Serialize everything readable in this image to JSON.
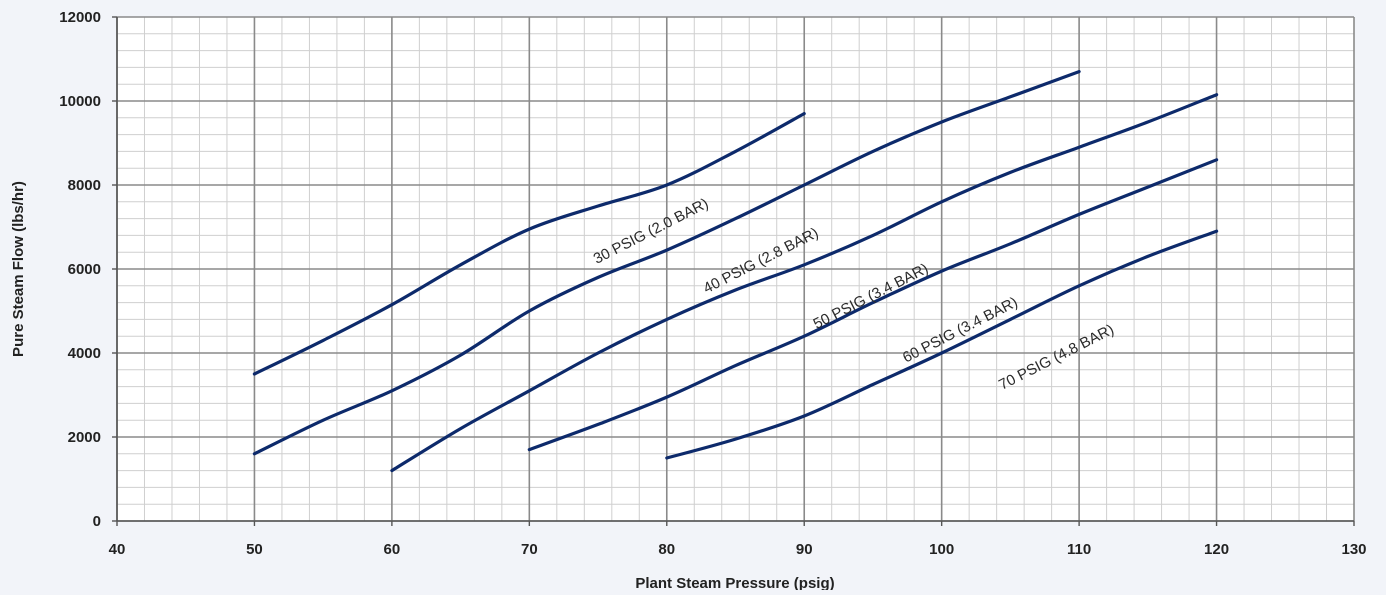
{
  "chart_data": {
    "type": "line",
    "title": "",
    "xlabel": "Plant Steam Pressure (psig)",
    "ylabel": "Pure Steam Flow (lbs/hr)",
    "xlim": [
      40,
      130
    ],
    "ylim": [
      0,
      12000
    ],
    "x_ticks": [
      "40",
      "50",
      "60",
      "70",
      "80",
      "90",
      "100",
      "110",
      "120",
      "130"
    ],
    "y_ticks": [
      "0",
      "2000",
      "4000",
      "6000",
      "8000",
      "10000",
      "12000"
    ],
    "grid": true,
    "minor_grid": true,
    "line_color": "#0d2a6b",
    "series": [
      {
        "name": "30 PSIG (2.0 BAR)",
        "points": [
          [
            50,
            3500
          ],
          [
            55,
            4300
          ],
          [
            60,
            5150
          ],
          [
            65,
            6100
          ],
          [
            70,
            6950
          ],
          [
            75,
            7500
          ],
          [
            80,
            8000
          ],
          [
            85,
            8800
          ],
          [
            90,
            9700
          ]
        ]
      },
      {
        "name": "40 PSIG (2.8 BAR)",
        "points": [
          [
            50,
            1600
          ],
          [
            55,
            2400
          ],
          [
            60,
            3100
          ],
          [
            65,
            3950
          ],
          [
            70,
            5000
          ],
          [
            75,
            5800
          ],
          [
            80,
            6450
          ],
          [
            85,
            7200
          ],
          [
            90,
            8000
          ],
          [
            95,
            8800
          ],
          [
            100,
            9500
          ],
          [
            105,
            10100
          ],
          [
            110,
            10700
          ]
        ]
      },
      {
        "name": "50 PSIG (3.4 BAR)",
        "points": [
          [
            60,
            1200
          ],
          [
            65,
            2200
          ],
          [
            70,
            3100
          ],
          [
            75,
            4000
          ],
          [
            80,
            4800
          ],
          [
            85,
            5500
          ],
          [
            90,
            6100
          ],
          [
            95,
            6800
          ],
          [
            100,
            7600
          ],
          [
            105,
            8300
          ],
          [
            110,
            8900
          ],
          [
            115,
            9500
          ],
          [
            120,
            10150
          ]
        ]
      },
      {
        "name": "60 PSIG (3.4 BAR)",
        "points": [
          [
            70,
            1700
          ],
          [
            75,
            2300
          ],
          [
            80,
            2950
          ],
          [
            85,
            3700
          ],
          [
            90,
            4400
          ],
          [
            95,
            5200
          ],
          [
            100,
            5950
          ],
          [
            105,
            6600
          ],
          [
            110,
            7300
          ],
          [
            115,
            7950
          ],
          [
            120,
            8600
          ]
        ]
      },
      {
        "name": "70 PSIG (4.8 BAR)",
        "points": [
          [
            80,
            1500
          ],
          [
            85,
            1950
          ],
          [
            90,
            2500
          ],
          [
            95,
            3250
          ],
          [
            100,
            4000
          ],
          [
            105,
            4800
          ],
          [
            110,
            5600
          ],
          [
            115,
            6300
          ],
          [
            120,
            6900
          ]
        ]
      }
    ],
    "annotations": [
      {
        "text": "30 PSIG (2.0 BAR)",
        "x": 79,
        "y": 6800,
        "angle_deg": -27
      },
      {
        "text": "40 PSIG (2.8 BAR)",
        "x": 87,
        "y": 6100,
        "angle_deg": -27
      },
      {
        "text": "50 PSIG (3.4 BAR)",
        "x": 95,
        "y": 5250,
        "angle_deg": -27
      },
      {
        "text": "60 PSIG (3.4 BAR)",
        "x": 101.5,
        "y": 4450,
        "angle_deg": -27
      },
      {
        "text": "70 PSIG (4.8 BAR)",
        "x": 108.5,
        "y": 3800,
        "angle_deg": -27
      }
    ]
  }
}
